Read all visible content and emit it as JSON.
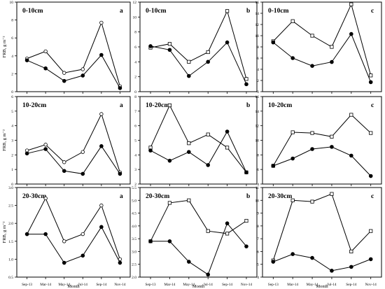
{
  "ylabel": "FRB, g m⁻²",
  "xlabel": "Month",
  "chart_data": [
    {
      "type": "line",
      "row": 0,
      "col": 0,
      "title": "0-10cm",
      "letter": "a",
      "categories": [
        "Sep-13",
        "Mar-14",
        "May-14",
        "Jul-14",
        "Sep-14",
        "Nov-14"
      ],
      "ylim": [
        0,
        10
      ],
      "yticks": [
        "0",
        "2",
        "4",
        "6",
        "8",
        "10"
      ],
      "xticklabels": [],
      "show_ylabel": true,
      "show_xlabel": false,
      "series": [
        {
          "marker": "open",
          "values": [
            3.7,
            4.5,
            2.1,
            2.5,
            7.7,
            0.6
          ]
        },
        {
          "marker": "filled",
          "values": [
            3.5,
            2.6,
            1.2,
            1.8,
            4.1,
            0.4
          ]
        }
      ]
    },
    {
      "type": "line",
      "row": 0,
      "col": 1,
      "title": "0-10cm",
      "letter": "b",
      "categories": [
        "Sep-13",
        "Mar-14",
        "May-14",
        "Jul-14",
        "Sep-14",
        "Nov-14"
      ],
      "ylim": [
        0,
        12
      ],
      "yticks": [
        "0",
        "2",
        "4",
        "6",
        "8",
        "10",
        "12"
      ],
      "xticklabels": [],
      "show_ylabel": false,
      "show_xlabel": false,
      "series": [
        {
          "marker": "open",
          "values": [
            5.9,
            6.4,
            4.0,
            5.3,
            10.8,
            1.7
          ]
        },
        {
          "marker": "filled",
          "values": [
            6.1,
            5.6,
            2.1,
            4.0,
            6.6,
            1.0
          ]
        }
      ]
    },
    {
      "type": "line",
      "row": 0,
      "col": 2,
      "title": "0-10cm",
      "letter": "c",
      "categories": [
        "Sep-13",
        "Mar-14",
        "May-14",
        "Jul-14",
        "Sep-14",
        "Nov-14"
      ],
      "ylim": [
        0,
        16
      ],
      "yticks": [
        "0",
        "2",
        "4",
        "6",
        "8",
        "10",
        "12",
        "14",
        "16"
      ],
      "xticklabels": [],
      "show_ylabel": false,
      "show_xlabel": false,
      "series": [
        {
          "marker": "open",
          "values": [
            9.0,
            12.6,
            10.0,
            8.0,
            15.6,
            2.9
          ]
        },
        {
          "marker": "filled",
          "values": [
            8.8,
            6.0,
            4.6,
            5.3,
            10.3,
            1.7
          ]
        }
      ]
    },
    {
      "type": "line",
      "row": 1,
      "col": 0,
      "title": "10-20cm",
      "letter": "a",
      "categories": [
        "Sep-13",
        "Mar-14",
        "May-14",
        "Jul-14",
        "Sep-14",
        "Nov-14"
      ],
      "ylim": [
        0,
        6
      ],
      "yticks": [
        "0",
        "1",
        "2",
        "3",
        "4",
        "5",
        "6"
      ],
      "xticklabels": [],
      "show_ylabel": true,
      "show_xlabel": false,
      "series": [
        {
          "marker": "open",
          "values": [
            2.3,
            2.7,
            1.5,
            2.2,
            4.8,
            0.8
          ]
        },
        {
          "marker": "filled",
          "values": [
            2.1,
            2.4,
            0.9,
            0.7,
            2.6,
            0.7
          ]
        }
      ]
    },
    {
      "type": "line",
      "row": 1,
      "col": 1,
      "title": "10-20cm",
      "letter": "b",
      "categories": [
        "Sep-13",
        "Mar-14",
        "May-14",
        "Jul-14",
        "Sep-14",
        "Nov-14"
      ],
      "ylim": [
        2,
        8
      ],
      "yticks": [
        "2",
        "3",
        "4",
        "5",
        "6",
        "7",
        "8"
      ],
      "xticklabels": [],
      "show_ylabel": false,
      "show_xlabel": false,
      "series": [
        {
          "marker": "open",
          "values": [
            4.5,
            7.4,
            4.8,
            5.4,
            4.5,
            2.8
          ]
        },
        {
          "marker": "filled",
          "values": [
            4.3,
            3.6,
            4.2,
            3.3,
            5.6,
            2.8
          ]
        }
      ]
    },
    {
      "type": "line",
      "row": 1,
      "col": 2,
      "title": "10-20cm",
      "letter": "c",
      "categories": [
        "Sep-13",
        "Mar-14",
        "May-14",
        "Jul-14",
        "Sep-14",
        "Nov-14"
      ],
      "ylim": [
        4,
        16
      ],
      "yticks": [
        "4",
        "6",
        "8",
        "10",
        "12",
        "14",
        "16"
      ],
      "xticklabels": [],
      "show_ylabel": false,
      "show_xlabel": false,
      "series": [
        {
          "marker": "open",
          "values": [
            6.5,
            11.1,
            11.0,
            10.5,
            13.5,
            11.0
          ]
        },
        {
          "marker": "filled",
          "values": [
            6.5,
            7.5,
            8.8,
            9.1,
            7.9,
            5.1
          ]
        }
      ]
    },
    {
      "type": "line",
      "row": 2,
      "col": 0,
      "title": "20-30cm",
      "letter": "a",
      "categories": [
        "Sep-13",
        "Mar-14",
        "May-14",
        "Jul-14",
        "Sep-14",
        "Nov-14"
      ],
      "ylim": [
        0.5,
        3.0
      ],
      "yticks": [
        "0.5",
        "1.0",
        "1.5",
        "2.0",
        "2.5",
        "3.0"
      ],
      "xticklabels": [
        "Sep-13",
        "Mar-14",
        "May-14",
        "Jul-14",
        "Sep-14",
        "Nov-14"
      ],
      "show_ylabel": true,
      "show_xlabel": true,
      "series": [
        {
          "marker": "open",
          "values": [
            1.7,
            2.7,
            1.5,
            1.7,
            2.5,
            1.0
          ]
        },
        {
          "marker": "filled",
          "values": [
            1.7,
            1.7,
            0.9,
            1.1,
            1.9,
            0.9
          ]
        }
      ]
    },
    {
      "type": "line",
      "row": 2,
      "col": 1,
      "title": "20-30cm",
      "letter": "b",
      "categories": [
        "Sep-13",
        "Mar-14",
        "May-14",
        "Jul-14",
        "Sep-14",
        "Nov-14"
      ],
      "ylim": [
        2.0,
        5.5
      ],
      "yticks": [
        "2.0",
        "2.5",
        "3.0",
        "3.5",
        "4.0",
        "4.5",
        "5.0",
        "5.5"
      ],
      "xticklabels": [
        "Sep-13",
        "Mar-14",
        "May-14",
        "Jul-14",
        "Sep-14",
        "Nov-14"
      ],
      "show_ylabel": false,
      "show_xlabel": true,
      "series": [
        {
          "marker": "open",
          "values": [
            3.4,
            4.9,
            5.0,
            3.8,
            3.7,
            4.2
          ]
        },
        {
          "marker": "filled",
          "values": [
            3.4,
            3.4,
            2.6,
            2.1,
            4.1,
            3.2
          ]
        }
      ]
    },
    {
      "type": "line",
      "row": 2,
      "col": 2,
      "title": "20-30cm",
      "letter": "c",
      "categories": [
        "Sep-13",
        "Mar-14",
        "May-14",
        "Jul-14",
        "Sep-14",
        "Nov-14"
      ],
      "ylim": [
        4,
        11
      ],
      "yticks": [
        "4",
        "5",
        "6",
        "7",
        "8",
        "9",
        "10",
        "11"
      ],
      "xticklabels": [
        "Sep-13",
        "Mar-14",
        "May-14",
        "Jul-14",
        "Sep-14",
        "Nov-14"
      ],
      "show_ylabel": false,
      "show_xlabel": true,
      "series": [
        {
          "marker": "open",
          "values": [
            5.3,
            10.0,
            9.9,
            10.5,
            6.0,
            7.6
          ]
        },
        {
          "marker": "filled",
          "values": [
            5.2,
            5.8,
            5.5,
            4.5,
            4.8,
            5.4
          ]
        }
      ]
    }
  ]
}
